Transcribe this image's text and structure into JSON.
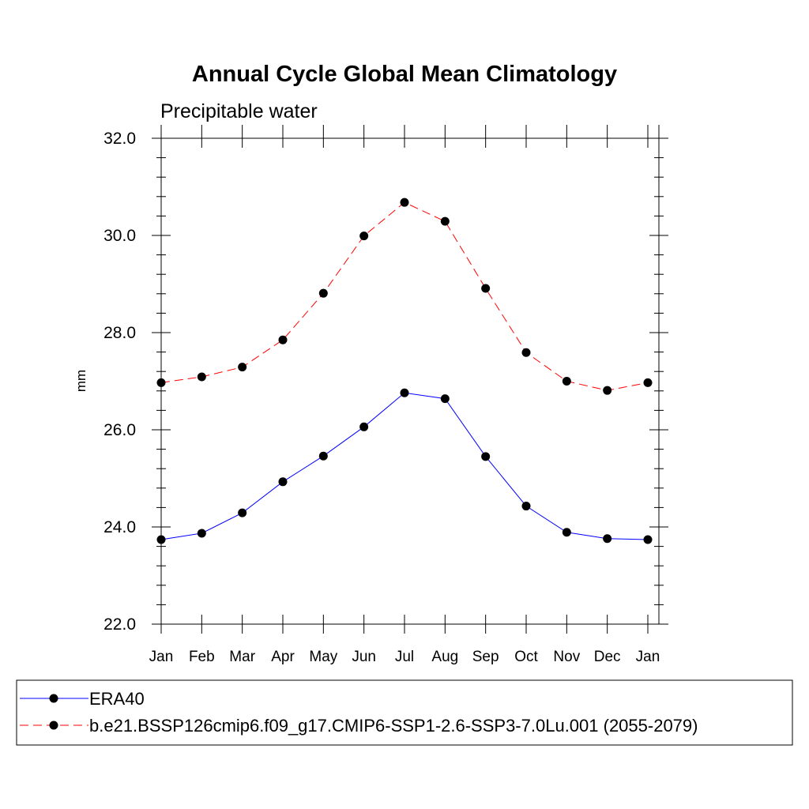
{
  "chart_data": {
    "type": "line",
    "title": "Annual Cycle Global Mean Climatology",
    "subtitle": "Precipitable water",
    "ylabel": "mm",
    "xlabel": "",
    "categories": [
      "Jan",
      "Feb",
      "Mar",
      "Apr",
      "May",
      "Jun",
      "Jul",
      "Aug",
      "Sep",
      "Oct",
      "Nov",
      "Dec",
      "Jan"
    ],
    "ylim": [
      22.0,
      32.0
    ],
    "yticks": [
      "22.0",
      "24.0",
      "26.0",
      "28.0",
      "30.0",
      "32.0"
    ],
    "series": [
      {
        "name": "ERA40",
        "color": "#0000ff",
        "dash": "solid",
        "values": [
          23.74,
          23.87,
          24.29,
          24.93,
          25.46,
          26.06,
          26.76,
          26.64,
          25.45,
          24.43,
          23.89,
          23.76,
          23.74
        ]
      },
      {
        "name": "b.e21.BSSP126cmip6.f09_g17.CMIP6-SSP1-2.6-SSP3-7.0Lu.001 (2055-2079)",
        "color": "#ff0000",
        "dash": "dashed",
        "values": [
          26.97,
          27.09,
          27.29,
          27.85,
          28.81,
          29.99,
          30.68,
          30.29,
          28.91,
          27.59,
          27.0,
          26.81,
          26.97
        ]
      }
    ],
    "marker": "filled-circle",
    "marker_color": "#000000",
    "grid": false,
    "legend_position": "bottom"
  }
}
